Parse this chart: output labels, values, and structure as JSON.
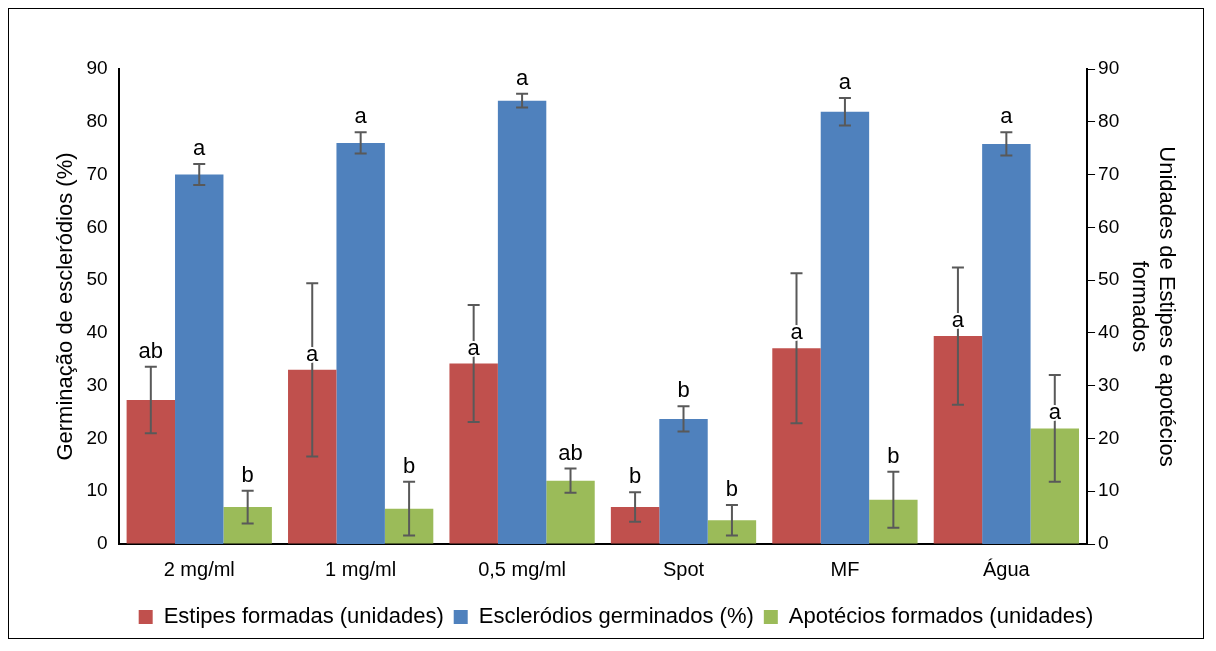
{
  "chart_data": {
    "type": "bar",
    "ylabel": "Germinação de escleródios (%)",
    "y2label": "Unidades de Estipes e apotécios formados",
    "categories": [
      "2 mg/ml",
      "1 mg/ml",
      "0,5 mg/ml",
      "Spot",
      "MF",
      "Água"
    ],
    "series": [
      {
        "name": "Estipes formadas (unidades)",
        "color": "#c0504d",
        "axis": "y2",
        "values": [
          27.3,
          33.0,
          34.2,
          7.0,
          37.1,
          39.4
        ],
        "errors": [
          6.3,
          16.4,
          11.1,
          2.8,
          14.2,
          13.0
        ],
        "value_labels": [
          "ab",
          "a",
          "a",
          "b",
          "a",
          "a"
        ]
      },
      {
        "name": "Escleródios germinados (%)",
        "color": "#4f81bd",
        "values": [
          70,
          76,
          84,
          23.7,
          81.9,
          75.8
        ],
        "errors": [
          2,
          2,
          1.3,
          2.4,
          2.6,
          2.2
        ],
        "value_labels": [
          "a",
          "a",
          "a",
          "b",
          "a",
          "a"
        ]
      },
      {
        "name": "Apotécios formados (unidades)",
        "color": "#9bbb59",
        "axis": "y2",
        "values": [
          7.0,
          6.7,
          12.0,
          4.5,
          8.4,
          21.9
        ],
        "errors": [
          3.1,
          5.1,
          2.3,
          2.9,
          5.3,
          10.1
        ],
        "value_labels": [
          "b",
          "b",
          "ab",
          "b",
          "b",
          "a"
        ]
      }
    ],
    "ylim": [
      0,
      90
    ],
    "yticks": [
      0,
      10,
      20,
      30,
      40,
      50,
      60,
      70,
      80,
      90
    ],
    "y2lim": [
      0,
      90
    ],
    "y2ticks": [
      0,
      10,
      20,
      30,
      40,
      50,
      60,
      70,
      80,
      90
    ],
    "grid": false,
    "legend": "bottom"
  }
}
